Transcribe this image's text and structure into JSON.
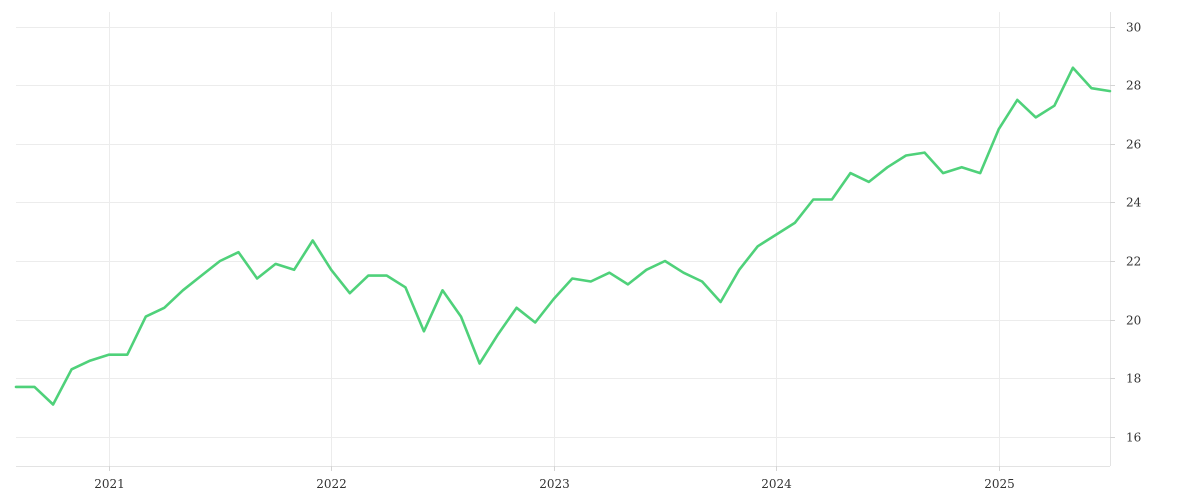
{
  "chart_data": {
    "type": "line",
    "title": "",
    "xlabel": "",
    "ylabel": "",
    "grid": true,
    "legend": "none",
    "y_axis_side": "right",
    "colors": {
      "series": "#4fd17a",
      "grid": "#ececec",
      "text": "#333333"
    },
    "xlim": [
      "2020-08",
      "2025-07"
    ],
    "ylim": [
      15,
      30.5
    ],
    "x_ticks": [
      "2021",
      "2022",
      "2023",
      "2024",
      "2025"
    ],
    "y_ticks": [
      16,
      18,
      20,
      22,
      24,
      26,
      28,
      30
    ],
    "series": [
      {
        "x": [
          "2020-08",
          "2020-09",
          "2020-10",
          "2020-11",
          "2020-12",
          "2021-01",
          "2021-02",
          "2021-03",
          "2021-04",
          "2021-05",
          "2021-06",
          "2021-07",
          "2021-08",
          "2021-09",
          "2021-10",
          "2021-11",
          "2021-12",
          "2022-01",
          "2022-02",
          "2022-03",
          "2022-04",
          "2022-05",
          "2022-06",
          "2022-07",
          "2022-08",
          "2022-09",
          "2022-10",
          "2022-11",
          "2022-12",
          "2023-01",
          "2023-02",
          "2023-03",
          "2023-04",
          "2023-05",
          "2023-06",
          "2023-07",
          "2023-08",
          "2023-09",
          "2023-10",
          "2023-11",
          "2023-12",
          "2024-01",
          "2024-02",
          "2024-03",
          "2024-04",
          "2024-05",
          "2024-06",
          "2024-07",
          "2024-08",
          "2024-09",
          "2024-10",
          "2024-11",
          "2024-12",
          "2025-01",
          "2025-02",
          "2025-03",
          "2025-04",
          "2025-05",
          "2025-06",
          "2025-07"
        ],
        "y": [
          17.7,
          17.7,
          17.1,
          18.3,
          18.6,
          18.8,
          18.8,
          20.1,
          20.4,
          21.0,
          21.5,
          22.0,
          22.3,
          21.4,
          21.9,
          21.7,
          22.7,
          21.7,
          20.9,
          21.5,
          21.5,
          21.1,
          19.6,
          21.0,
          20.1,
          18.5,
          19.5,
          20.4,
          19.9,
          20.7,
          21.4,
          21.3,
          21.6,
          21.2,
          21.7,
          22.0,
          21.6,
          21.3,
          20.6,
          21.7,
          22.5,
          22.9,
          23.3,
          24.1,
          24.1,
          25.0,
          24.7,
          25.2,
          25.6,
          25.7,
          25.0,
          25.2,
          25.0,
          26.5,
          27.5,
          26.9,
          27.3,
          28.6,
          27.9,
          27.8
        ]
      }
    ]
  }
}
